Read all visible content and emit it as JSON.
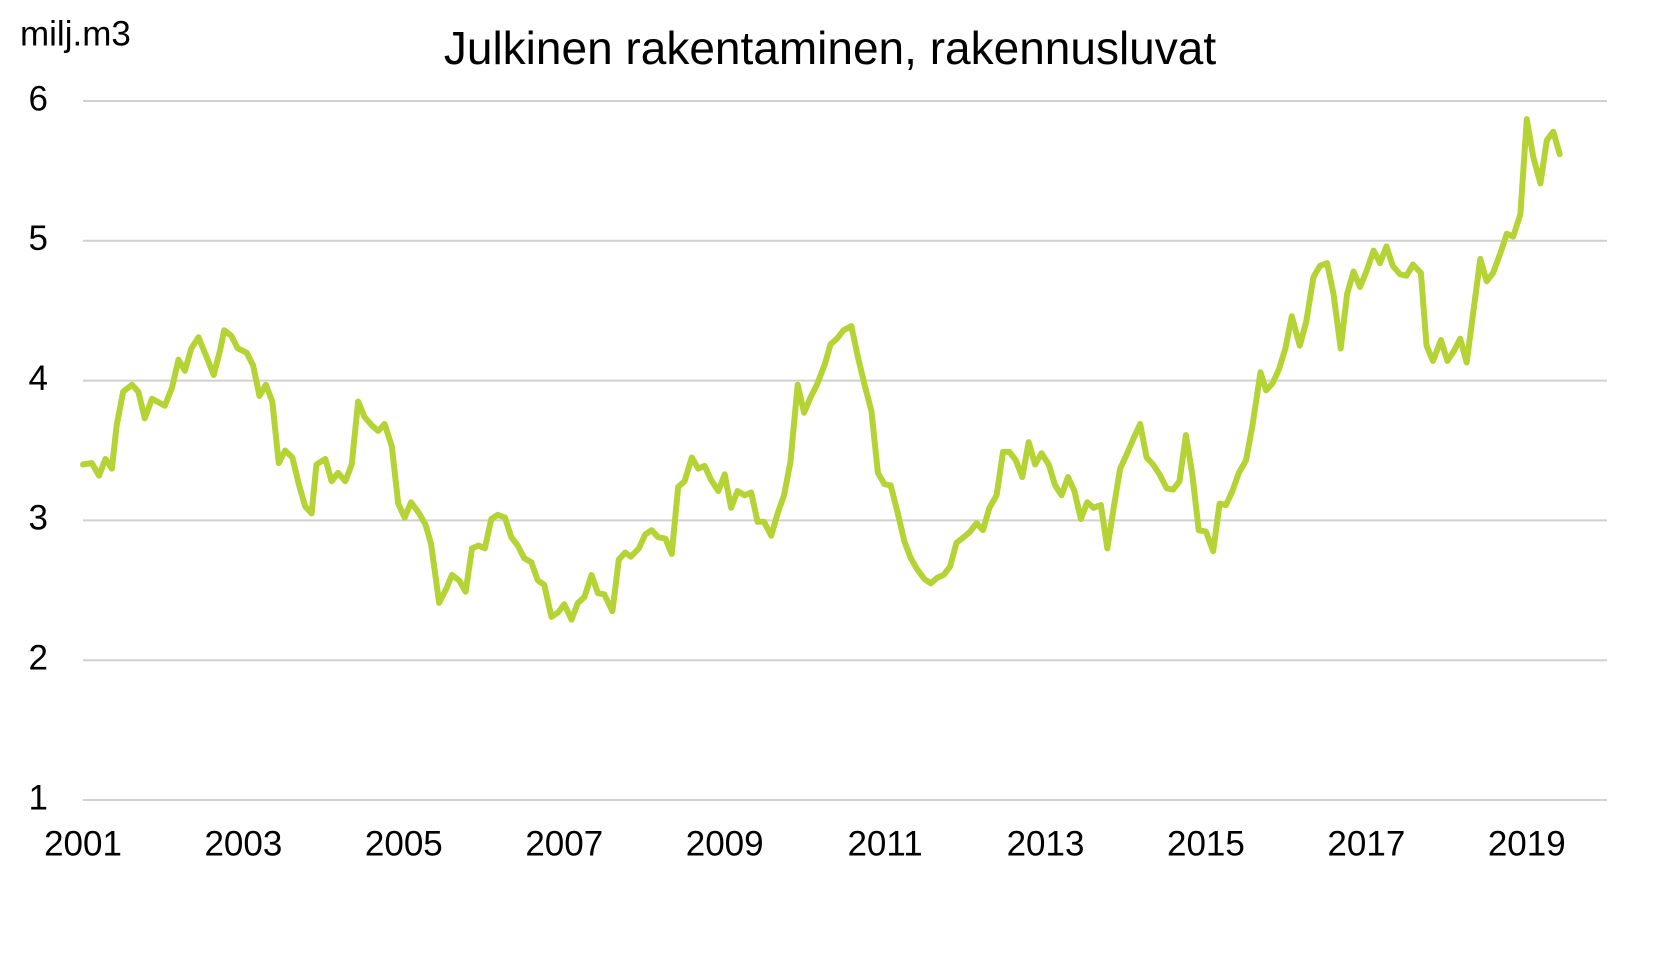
{
  "chart_data": {
    "type": "line",
    "title": "Julkinen rakentaminen, rakennusluvat",
    "y_label": "milj.m3",
    "color": "#b5d334",
    "grid": true,
    "xlim": [
      2001,
      2020
    ],
    "xticks": [
      2001,
      2003,
      2005,
      2007,
      2009,
      2011,
      2013,
      2015,
      2017,
      2019
    ],
    "ylim": [
      1,
      6
    ],
    "yticks": [
      1,
      2,
      3,
      4,
      5,
      6
    ],
    "x": [
      2001.0,
      2001.11,
      2001.2,
      2001.28,
      2001.36,
      2001.42,
      2001.5,
      2001.61,
      2001.69,
      2001.77,
      2001.86,
      2002.02,
      2002.11,
      2002.19,
      2002.27,
      2002.35,
      2002.44,
      2002.54,
      2002.63,
      2002.71,
      2002.76,
      2002.85,
      2002.93,
      2003.04,
      2003.12,
      2003.2,
      2003.28,
      2003.36,
      2003.44,
      2003.52,
      2003.61,
      2003.69,
      2003.77,
      2003.85,
      2003.91,
      2004.02,
      2004.1,
      2004.18,
      2004.27,
      2004.35,
      2004.43,
      2004.51,
      2004.6,
      2004.68,
      2004.76,
      2004.85,
      2004.93,
      2005.01,
      2005.09,
      2005.19,
      2005.27,
      2005.34,
      2005.44,
      2005.52,
      2005.6,
      2005.69,
      2005.77,
      2005.85,
      2005.93,
      2006.01,
      2006.09,
      2006.17,
      2006.26,
      2006.34,
      2006.42,
      2006.5,
      2006.59,
      2006.67,
      2006.75,
      2006.84,
      2006.92,
      2007.0,
      2007.09,
      2007.17,
      2007.25,
      2007.34,
      2007.42,
      2007.5,
      2007.6,
      2007.68,
      2007.76,
      2007.83,
      2007.93,
      2008.01,
      2008.09,
      2008.17,
      2008.26,
      2008.34,
      2008.42,
      2008.5,
      2008.59,
      2008.67,
      2008.75,
      2008.83,
      2008.92,
      2009.0,
      2009.08,
      2009.16,
      2009.25,
      2009.33,
      2009.41,
      2009.49,
      2009.58,
      2009.66,
      2009.74,
      2009.82,
      2009.91,
      2009.99,
      2010.07,
      2010.15,
      2010.25,
      2010.32,
      2010.4,
      2010.48,
      2010.58,
      2010.66,
      2010.74,
      2010.83,
      2010.91,
      2010.99,
      2011.07,
      2011.15,
      2011.24,
      2011.32,
      2011.4,
      2011.49,
      2011.57,
      2011.65,
      2011.73,
      2011.81,
      2011.89,
      2011.98,
      2012.06,
      2012.14,
      2012.22,
      2012.3,
      2012.39,
      2012.47,
      2012.55,
      2012.63,
      2012.71,
      2012.79,
      2012.87,
      2012.95,
      2013.04,
      2013.12,
      2013.2,
      2013.28,
      2013.36,
      2013.44,
      2013.52,
      2013.6,
      2013.69,
      2013.77,
      2013.85,
      2013.93,
      2014.01,
      2014.1,
      2014.18,
      2014.26,
      2014.34,
      2014.42,
      2014.51,
      2014.59,
      2014.67,
      2014.75,
      2014.83,
      2014.91,
      2015.0,
      2015.09,
      2015.17,
      2015.25,
      2015.33,
      2015.41,
      2015.5,
      2015.58,
      2015.68,
      2015.75,
      2015.83,
      2015.91,
      2015.99,
      2016.07,
      2016.17,
      2016.25,
      2016.34,
      2016.42,
      2016.51,
      2016.59,
      2016.68,
      2016.76,
      2016.84,
      2016.92,
      2017.0,
      2017.09,
      2017.17,
      2017.25,
      2017.33,
      2017.42,
      2017.5,
      2017.58,
      2017.68,
      2017.75,
      2017.83,
      2017.93,
      2018.01,
      2018.09,
      2018.17,
      2018.25,
      2018.34,
      2018.42,
      2018.5,
      2018.58,
      2018.67,
      2018.75,
      2018.83,
      2018.92,
      2019.0,
      2019.08,
      2019.17,
      2019.25,
      2019.33,
      2019.41
    ],
    "values": [
      3.4,
      3.41,
      3.32,
      3.44,
      3.37,
      3.68,
      3.92,
      3.97,
      3.92,
      3.73,
      3.87,
      3.82,
      3.95,
      4.15,
      4.07,
      4.23,
      4.31,
      4.17,
      4.04,
      4.22,
      4.36,
      4.32,
      4.23,
      4.2,
      4.11,
      3.89,
      3.97,
      3.85,
      3.41,
      3.5,
      3.45,
      3.26,
      3.1,
      3.05,
      3.4,
      3.44,
      3.28,
      3.34,
      3.28,
      3.4,
      3.85,
      3.74,
      3.68,
      3.64,
      3.69,
      3.53,
      3.12,
      3.02,
      3.13,
      3.05,
      2.97,
      2.83,
      2.41,
      2.5,
      2.61,
      2.57,
      2.49,
      2.8,
      2.82,
      2.8,
      3.01,
      3.04,
      3.02,
      2.88,
      2.82,
      2.73,
      2.7,
      2.57,
      2.54,
      2.31,
      2.34,
      2.4,
      2.29,
      2.41,
      2.45,
      2.61,
      2.48,
      2.47,
      2.35,
      2.72,
      2.77,
      2.74,
      2.8,
      2.9,
      2.93,
      2.88,
      2.87,
      2.76,
      3.24,
      3.28,
      3.45,
      3.37,
      3.39,
      3.29,
      3.21,
      3.33,
      3.09,
      3.21,
      3.18,
      3.2,
      2.99,
      2.99,
      2.89,
      3.05,
      3.18,
      3.42,
      3.97,
      3.77,
      3.88,
      3.97,
      4.12,
      4.26,
      4.3,
      4.36,
      4.39,
      4.17,
      3.98,
      3.78,
      3.34,
      3.26,
      3.25,
      3.07,
      2.85,
      2.73,
      2.65,
      2.58,
      2.55,
      2.59,
      2.61,
      2.67,
      2.84,
      2.88,
      2.92,
      2.98,
      2.93,
      3.09,
      3.18,
      3.49,
      3.49,
      3.43,
      3.31,
      3.56,
      3.4,
      3.48,
      3.4,
      3.25,
      3.18,
      3.31,
      3.21,
      3.01,
      3.13,
      3.09,
      3.11,
      2.8,
      3.09,
      3.37,
      3.47,
      3.59,
      3.69,
      3.45,
      3.4,
      3.33,
      3.23,
      3.22,
      3.28,
      3.61,
      3.33,
      2.93,
      2.92,
      2.78,
      3.12,
      3.11,
      3.21,
      3.34,
      3.43,
      3.68,
      4.06,
      3.93,
      3.98,
      4.08,
      4.23,
      4.46,
      4.25,
      4.42,
      4.74,
      4.82,
      4.84,
      4.62,
      4.23,
      4.62,
      4.78,
      4.67,
      4.78,
      4.93,
      4.84,
      4.96,
      4.82,
      4.76,
      4.75,
      4.83,
      4.77,
      4.25,
      4.14,
      4.29,
      4.14,
      4.21,
      4.3,
      4.13,
      4.52,
      4.87,
      4.71,
      4.77,
      4.91,
      5.05,
      5.03,
      5.19,
      5.87,
      5.6,
      5.41,
      5.72,
      5.78,
      5.62
    ]
  }
}
